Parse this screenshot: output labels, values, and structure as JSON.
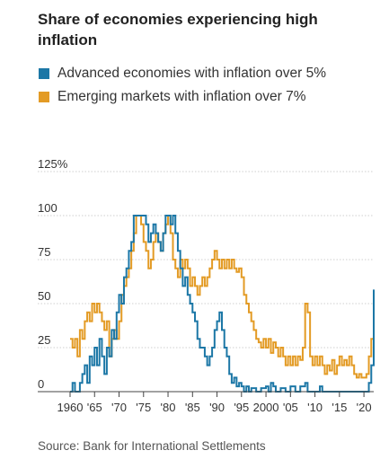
{
  "header": {
    "title": "Share of economies experiencing high inflation"
  },
  "legend": [
    {
      "label": "Advanced economies with inflation over 5%",
      "color": "#1c77a6"
    },
    {
      "label": "Emerging markets with inflation over 7%",
      "color": "#e39b25"
    }
  ],
  "footer": {
    "source": "Source: Bank for International Settlements"
  },
  "chart_data": {
    "type": "line",
    "title": "Share of economies experiencing high inflation",
    "xlabel": "",
    "ylabel": "",
    "xlim": [
      1960,
      2022
    ],
    "ylim": [
      0,
      125
    ],
    "yticks": [
      0,
      25,
      50,
      75,
      100,
      125
    ],
    "ytick_labels": [
      "0",
      "25",
      "50",
      "75",
      "100",
      "125%"
    ],
    "xticks": [
      1960,
      1965,
      1970,
      1975,
      1980,
      1985,
      1990,
      1995,
      2000,
      2005,
      2010,
      2015,
      2020
    ],
    "xtick_labels": [
      "1960",
      "'65",
      "'70",
      "'75",
      "'80",
      "'85",
      "'90",
      "'95",
      "2000",
      "'05",
      "'10",
      "'15",
      "'20"
    ],
    "grid": "horizontal",
    "legend_position": "top",
    "series": [
      {
        "name": "Advanced economies with inflation over 5%",
        "color": "#1c77a6",
        "points": [
          [
            1960,
            0
          ],
          [
            1960.5,
            5
          ],
          [
            1961,
            0
          ],
          [
            1962,
            5
          ],
          [
            1962.5,
            10
          ],
          [
            1963,
            15
          ],
          [
            1963.5,
            5
          ],
          [
            1964,
            20
          ],
          [
            1964.5,
            15
          ],
          [
            1965,
            25
          ],
          [
            1965.5,
            15
          ],
          [
            1966,
            30
          ],
          [
            1966.5,
            20
          ],
          [
            1967,
            10
          ],
          [
            1967.5,
            25
          ],
          [
            1968,
            20
          ],
          [
            1968.5,
            35
          ],
          [
            1969,
            30
          ],
          [
            1969.5,
            45
          ],
          [
            1970,
            55
          ],
          [
            1970.5,
            50
          ],
          [
            1971,
            65
          ],
          [
            1971.5,
            70
          ],
          [
            1972,
            80
          ],
          [
            1972.5,
            85
          ],
          [
            1973,
            100
          ],
          [
            1973.5,
            100
          ],
          [
            1974,
            100
          ],
          [
            1974.5,
            100
          ],
          [
            1975,
            100
          ],
          [
            1975.5,
            95
          ],
          [
            1976,
            85
          ],
          [
            1976.5,
            90
          ],
          [
            1977,
            95
          ],
          [
            1977.5,
            90
          ],
          [
            1978,
            85
          ],
          [
            1978.5,
            80
          ],
          [
            1979,
            90
          ],
          [
            1979.5,
            100
          ],
          [
            1980,
            100
          ],
          [
            1980.5,
            95
          ],
          [
            1981,
            100
          ],
          [
            1981.5,
            90
          ],
          [
            1982,
            80
          ],
          [
            1982.5,
            70
          ],
          [
            1983,
            60
          ],
          [
            1983.5,
            65
          ],
          [
            1984,
            55
          ],
          [
            1984.5,
            50
          ],
          [
            1985,
            45
          ],
          [
            1985.5,
            40
          ],
          [
            1986,
            30
          ],
          [
            1986.5,
            25
          ],
          [
            1987,
            25
          ],
          [
            1987.5,
            20
          ],
          [
            1988,
            15
          ],
          [
            1988.5,
            20
          ],
          [
            1989,
            25
          ],
          [
            1989.5,
            35
          ],
          [
            1990,
            40
          ],
          [
            1990.5,
            45
          ],
          [
            1991,
            35
          ],
          [
            1991.5,
            25
          ],
          [
            1992,
            20
          ],
          [
            1992.5,
            10
          ],
          [
            1993,
            5
          ],
          [
            1993.5,
            8
          ],
          [
            1994,
            3
          ],
          [
            1994.5,
            5
          ],
          [
            1995,
            3
          ],
          [
            1995.5,
            0
          ],
          [
            1996,
            3
          ],
          [
            1996.5,
            0
          ],
          [
            1997,
            2
          ],
          [
            1998,
            0
          ],
          [
            1999,
            2
          ],
          [
            2000,
            3
          ],
          [
            2000.5,
            0
          ],
          [
            2001,
            5
          ],
          [
            2001.5,
            3
          ],
          [
            2002,
            0
          ],
          [
            2003,
            2
          ],
          [
            2004,
            0
          ],
          [
            2005,
            3
          ],
          [
            2006,
            0
          ],
          [
            2007,
            3
          ],
          [
            2008,
            5
          ],
          [
            2008.5,
            0
          ],
          [
            2009,
            0
          ],
          [
            2010,
            0
          ],
          [
            2011,
            3
          ],
          [
            2011.5,
            0
          ],
          [
            2012,
            0
          ],
          [
            2014,
            0
          ],
          [
            2016,
            0
          ],
          [
            2018,
            0
          ],
          [
            2020,
            0
          ],
          [
            2021,
            5
          ],
          [
            2021.5,
            15
          ],
          [
            2022,
            58
          ]
        ]
      },
      {
        "name": "Emerging markets with inflation over 7%",
        "color": "#e39b25",
        "points": [
          [
            1960,
            30
          ],
          [
            1960.5,
            25
          ],
          [
            1961,
            30
          ],
          [
            1961.5,
            20
          ],
          [
            1962,
            35
          ],
          [
            1962.5,
            30
          ],
          [
            1963,
            40
          ],
          [
            1963.5,
            45
          ],
          [
            1964,
            40
          ],
          [
            1964.5,
            50
          ],
          [
            1965,
            45
          ],
          [
            1965.5,
            50
          ],
          [
            1966,
            45
          ],
          [
            1966.5,
            40
          ],
          [
            1967,
            35
          ],
          [
            1967.5,
            40
          ],
          [
            1968,
            20
          ],
          [
            1968.5,
            30
          ],
          [
            1969,
            35
          ],
          [
            1969.5,
            30
          ],
          [
            1970,
            40
          ],
          [
            1970.5,
            55
          ],
          [
            1971,
            60
          ],
          [
            1971.5,
            65
          ],
          [
            1972,
            70
          ],
          [
            1972.5,
            80
          ],
          [
            1973,
            90
          ],
          [
            1973.5,
            100
          ],
          [
            1974,
            100
          ],
          [
            1974.5,
            95
          ],
          [
            1975,
            85
          ],
          [
            1975.5,
            80
          ],
          [
            1976,
            70
          ],
          [
            1976.5,
            75
          ],
          [
            1977,
            85
          ],
          [
            1977.5,
            90
          ],
          [
            1978,
            85
          ],
          [
            1978.5,
            80
          ],
          [
            1979,
            90
          ],
          [
            1979.5,
            95
          ],
          [
            1980,
            100
          ],
          [
            1980.5,
            90
          ],
          [
            1981,
            75
          ],
          [
            1981.5,
            70
          ],
          [
            1982,
            65
          ],
          [
            1982.5,
            75
          ],
          [
            1983,
            70
          ],
          [
            1983.5,
            75
          ],
          [
            1984,
            70
          ],
          [
            1984.5,
            60
          ],
          [
            1985,
            65
          ],
          [
            1985.5,
            60
          ],
          [
            1986,
            55
          ],
          [
            1986.5,
            60
          ],
          [
            1987,
            65
          ],
          [
            1987.5,
            60
          ],
          [
            1988,
            65
          ],
          [
            1988.5,
            70
          ],
          [
            1989,
            75
          ],
          [
            1989.5,
            80
          ],
          [
            1990,
            75
          ],
          [
            1990.5,
            70
          ],
          [
            1991,
            75
          ],
          [
            1991.5,
            70
          ],
          [
            1992,
            75
          ],
          [
            1992.5,
            70
          ],
          [
            1993,
            75
          ],
          [
            1993.5,
            70
          ],
          [
            1994,
            68
          ],
          [
            1994.5,
            70
          ],
          [
            1995,
            65
          ],
          [
            1995.5,
            55
          ],
          [
            1996,
            50
          ],
          [
            1996.5,
            45
          ],
          [
            1997,
            40
          ],
          [
            1997.5,
            35
          ],
          [
            1998,
            30
          ],
          [
            1998.5,
            28
          ],
          [
            1999,
            25
          ],
          [
            1999.5,
            30
          ],
          [
            2000,
            25
          ],
          [
            2000.5,
            30
          ],
          [
            2001,
            22
          ],
          [
            2001.5,
            28
          ],
          [
            2002,
            25
          ],
          [
            2002.5,
            20
          ],
          [
            2003,
            25
          ],
          [
            2003.5,
            20
          ],
          [
            2004,
            15
          ],
          [
            2004.5,
            20
          ],
          [
            2005,
            15
          ],
          [
            2005.5,
            20
          ],
          [
            2006,
            15
          ],
          [
            2006.5,
            20
          ],
          [
            2007,
            18
          ],
          [
            2007.5,
            25
          ],
          [
            2008,
            50
          ],
          [
            2008.5,
            45
          ],
          [
            2009,
            20
          ],
          [
            2009.5,
            15
          ],
          [
            2010,
            20
          ],
          [
            2010.5,
            15
          ],
          [
            2011,
            20
          ],
          [
            2011.5,
            15
          ],
          [
            2012,
            10
          ],
          [
            2012.5,
            15
          ],
          [
            2013,
            12
          ],
          [
            2013.5,
            18
          ],
          [
            2014,
            10
          ],
          [
            2014.5,
            15
          ],
          [
            2015,
            20
          ],
          [
            2015.5,
            15
          ],
          [
            2016,
            18
          ],
          [
            2016.5,
            15
          ],
          [
            2017,
            20
          ],
          [
            2017.5,
            15
          ],
          [
            2018,
            10
          ],
          [
            2018.5,
            8
          ],
          [
            2019,
            10
          ],
          [
            2019.5,
            8
          ],
          [
            2020,
            8
          ],
          [
            2020.5,
            10
          ],
          [
            2021,
            20
          ],
          [
            2021.5,
            30
          ],
          [
            2022,
            35
          ]
        ]
      }
    ]
  }
}
